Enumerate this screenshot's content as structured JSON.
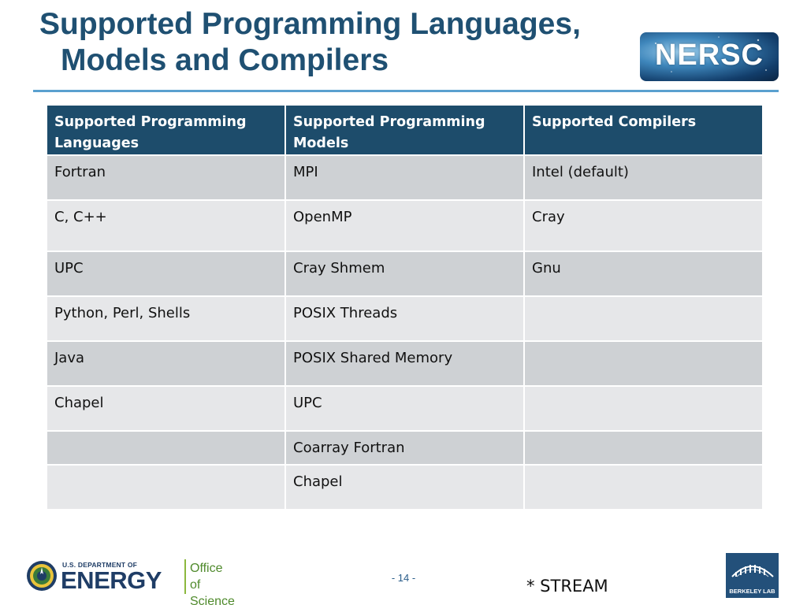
{
  "title": {
    "line1": "Supported Programming Languages,",
    "line2": "Models and Compilers"
  },
  "logos": {
    "nersc_text": "NERSC",
    "doe_small": "U.S. DEPARTMENT OF",
    "doe_big": "ENERGY",
    "doe_office_line1": "Office of",
    "doe_office_line2": "Science",
    "berkeley_text": "BERKELEY LAB"
  },
  "table": {
    "headers": [
      "Supported Programming Languages",
      "Supported Programming Models",
      "Supported Compilers"
    ],
    "rows": [
      [
        "Fortran",
        "MPI",
        "Intel (default)"
      ],
      [
        "C, C++",
        "OpenMP",
        "Cray"
      ],
      [
        "UPC",
        "Cray Shmem",
        "Gnu"
      ],
      [
        "Python, Perl, Shells",
        "POSIX Threads",
        ""
      ],
      [
        "Java",
        "POSIX Shared Memory",
        ""
      ],
      [
        "Chapel",
        "UPC",
        ""
      ],
      [
        "",
        "Coarray Fortran",
        ""
      ],
      [
        "",
        "Chapel",
        ""
      ]
    ]
  },
  "footer": {
    "page_number": "- 14 -",
    "footnote": "* STREAM"
  },
  "colors": {
    "title": "#1f5072",
    "header_bg": "#1d4c6b",
    "row_odd": "#ced1d4",
    "row_even": "#e6e7e9",
    "rule": "#5aa0cf"
  }
}
